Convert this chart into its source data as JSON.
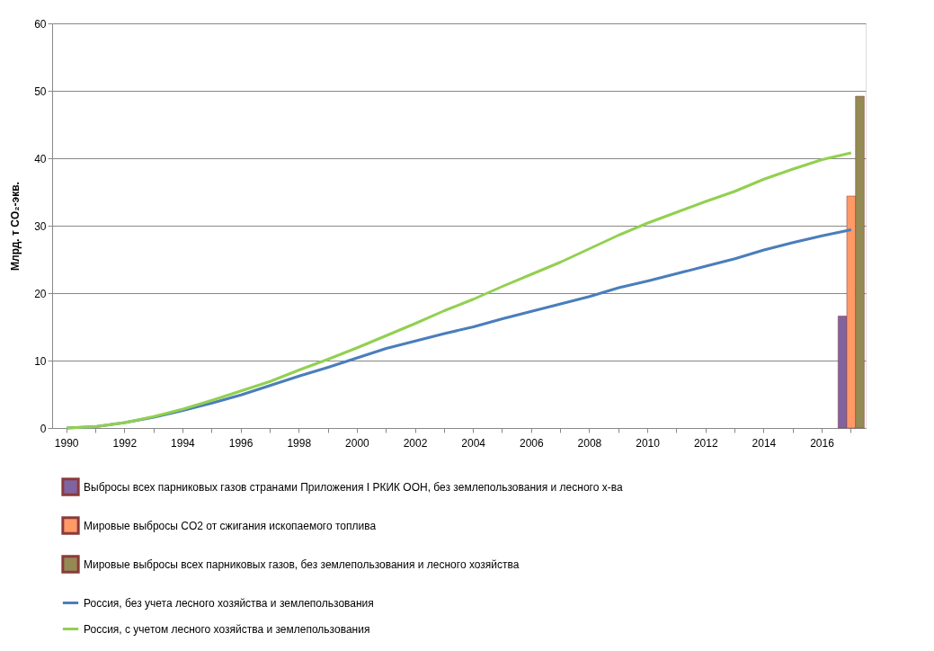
{
  "chart_data": {
    "type": "bar",
    "ylabel": "Млрд. т CO₂-экв.",
    "categories": [
      "1990",
      null,
      "1992",
      null,
      "1994",
      null,
      "1996",
      null,
      "1998",
      null,
      "2000",
      null,
      "2002",
      null,
      "2004",
      null,
      "2006",
      null,
      "2008",
      null,
      "2010",
      null,
      "2012",
      null,
      "2014",
      null,
      "2016",
      null
    ],
    "ylim": [
      0,
      60
    ],
    "yticks": [
      0,
      10,
      20,
      30,
      40,
      50,
      60
    ],
    "grid": "y",
    "legend": "bottom",
    "series": [
      {
        "name": "Выбросы всех парниковых газов странами Приложения I РКИК ООН, без землепользования и лесного х-ва",
        "color": "#8064a2",
        "values": [
          null,
          null,
          null,
          null,
          null,
          null,
          null,
          null,
          null,
          null,
          null,
          null,
          null,
          null,
          null,
          null,
          null,
          null,
          null,
          null,
          null,
          null,
          null,
          null,
          null,
          null,
          null,
          16.6
        ]
      },
      {
        "name": "Мировые выбросы CO2 от сжигания ископаемого топлива",
        "color": "#ff9966",
        "values": [
          null,
          null,
          null,
          null,
          null,
          null,
          null,
          null,
          null,
          null,
          null,
          null,
          null,
          null,
          null,
          null,
          null,
          null,
          null,
          null,
          null,
          null,
          null,
          null,
          null,
          null,
          null,
          34.4
        ]
      },
      {
        "name": "Мировые выбросы всех парниковых газов, без землепользования и лесного хозяйства",
        "color": "#948a54",
        "values": [
          null,
          null,
          null,
          null,
          null,
          null,
          null,
          null,
          null,
          null,
          null,
          null,
          null,
          null,
          null,
          null,
          null,
          null,
          null,
          null,
          null,
          null,
          null,
          null,
          null,
          null,
          null,
          49.2
        ]
      },
      {
        "name": "Россия, без учета лесного хозяйства и землепользования",
        "type": "line",
        "color": "#4a7ebb",
        "values": [
          0,
          0.2,
          0.8,
          1.6,
          2.6,
          3.7,
          4.9,
          6.3,
          7.7,
          9.0,
          10.4,
          11.8,
          12.9,
          14.0,
          15.0,
          16.2,
          17.3,
          18.4,
          19.5,
          20.8,
          21.8,
          22.9,
          24.0,
          25.1,
          26.4,
          27.5,
          28.5,
          29.4
        ]
      },
      {
        "name": "Россия, с учетом лесного хозяйства и землепользования",
        "type": "line",
        "color": "#92d050",
        "values": [
          0,
          0.2,
          0.8,
          1.7,
          2.8,
          4.1,
          5.5,
          6.9,
          8.6,
          10.2,
          11.9,
          13.7,
          15.5,
          17.4,
          19.1,
          21.0,
          22.8,
          24.6,
          26.6,
          28.6,
          30.4,
          32.0,
          33.6,
          35.1,
          36.9,
          38.4,
          39.8,
          40.8
        ]
      }
    ]
  }
}
